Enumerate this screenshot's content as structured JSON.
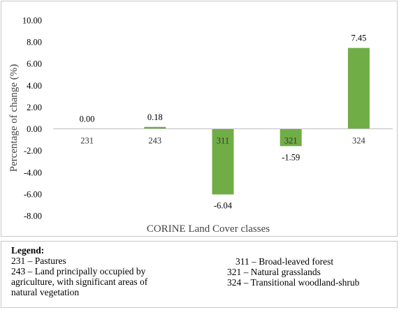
{
  "chart_data": {
    "type": "bar",
    "categories": [
      "231",
      "243",
      "311",
      "321",
      "324"
    ],
    "values": [
      0.0,
      0.18,
      -6.04,
      -1.59,
      7.45
    ],
    "data_labels": [
      "0.00",
      "0.18",
      "-6.04",
      "-1.59",
      "7.45"
    ],
    "title": "",
    "xlabel": "CORINE Land  Cover classes",
    "ylabel": "Percentage of change (%)",
    "ylim": [
      -8,
      10
    ],
    "yticks": [
      "10.00",
      "8.00",
      "6.00",
      "4.00",
      "2.00",
      "0.00",
      "-2.00",
      "-4.00",
      "-6.00",
      "-8.00"
    ],
    "ytick_values": [
      10,
      8,
      6,
      4,
      2,
      0,
      -2,
      -4,
      -6,
      -8
    ],
    "bar_color": "#70ad47",
    "grid": false
  },
  "legend": {
    "title": "Legend:",
    "left_items": [
      "231 – Pastures",
      "243 – Land principally occupied by",
      "agriculture, with significant areas of",
      "natural vegetation"
    ],
    "right_items": [
      "311 – Broad-leaved forest",
      "321 – Natural grasslands",
      "324 – Transitional woodland-shrub"
    ]
  }
}
